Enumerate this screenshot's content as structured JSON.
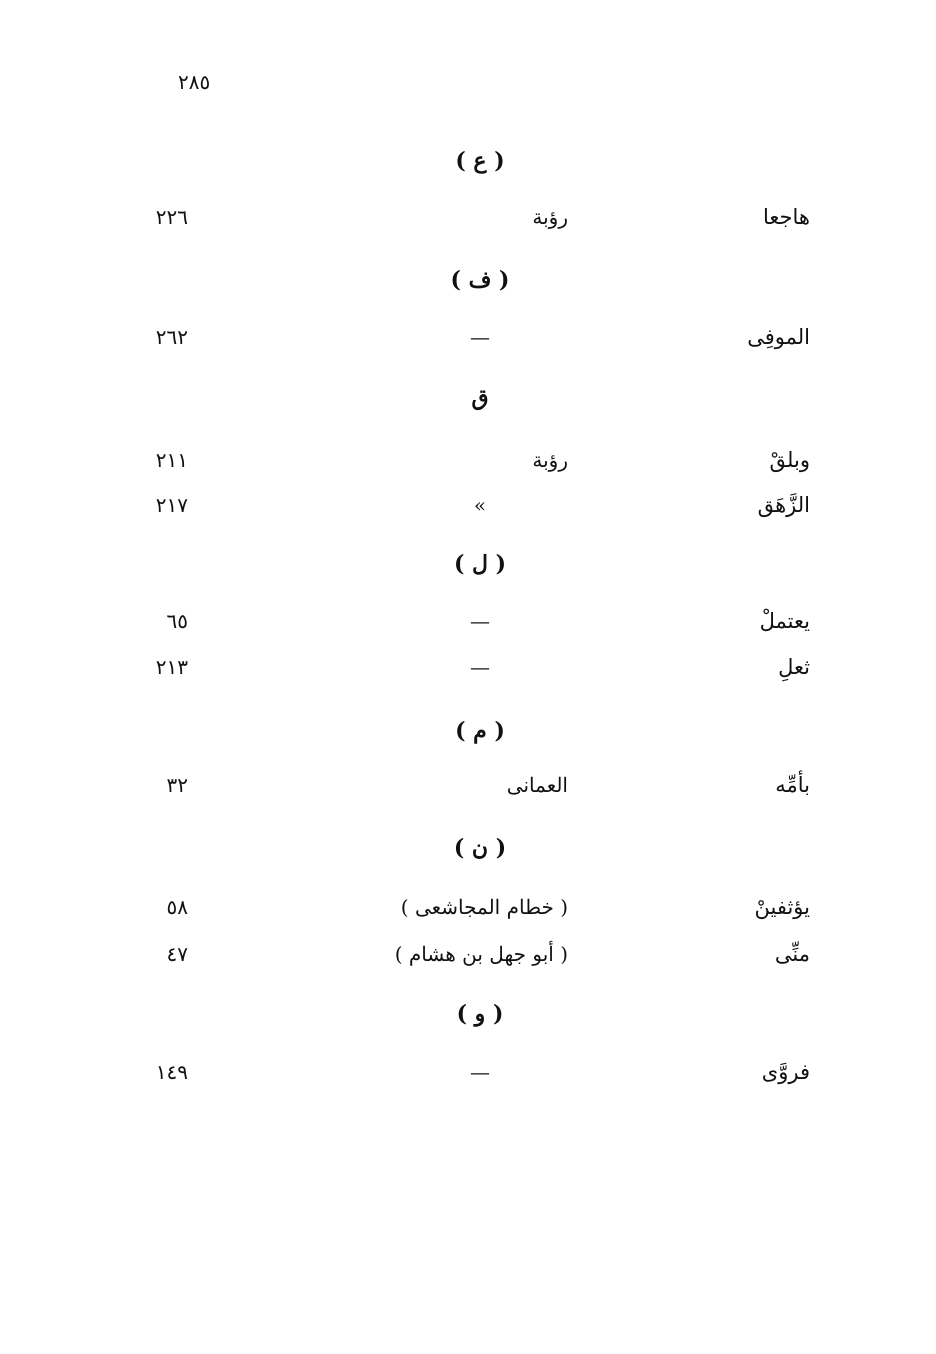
{
  "page_number": "٢٨٥",
  "sections": [
    {
      "heading": "( ع )",
      "entries": [
        {
          "word": "هاجعا",
          "poet": "رؤبة",
          "page": "٢٢٦"
        }
      ]
    },
    {
      "heading": "( ف )",
      "entries": [
        {
          "word": "الموفِى",
          "poet": "—",
          "page": "٢٦٢"
        }
      ]
    },
    {
      "heading": "ق",
      "entries": [
        {
          "word": "وبلقْ",
          "poet": "رؤبة",
          "page": "٢١١"
        },
        {
          "word": "الزَّهَق",
          "poet": "»",
          "page": "٢١٧"
        }
      ]
    },
    {
      "heading": "( ل )",
      "entries": [
        {
          "word": "يعتملْ",
          "poet": "—",
          "page": "٦٥"
        },
        {
          "word": "ثعلِ",
          "poet": "—",
          "page": "٢١٣"
        }
      ]
    },
    {
      "heading": "( م )",
      "entries": [
        {
          "word": "بأمِّه",
          "poet": "العمانى",
          "page": "٣٢"
        }
      ]
    },
    {
      "heading": "( ن )",
      "entries": [
        {
          "word": "يؤثفينْ",
          "poet": "( خطام المجاشعى )",
          "page": "٥٨"
        },
        {
          "word": "منِّى",
          "poet": "( أبو جهل بن هشام )",
          "page": "٤٧"
        }
      ]
    },
    {
      "heading": "( و )",
      "entries": [
        {
          "word": "فروَّى",
          "poet": "—",
          "page": "١٤٩"
        }
      ]
    }
  ]
}
